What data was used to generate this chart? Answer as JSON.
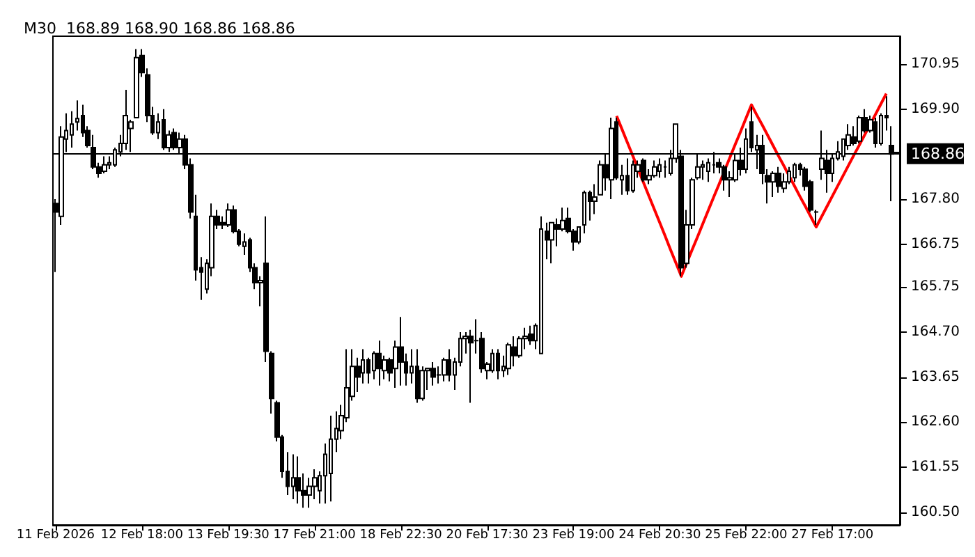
{
  "chart_data": {
    "type": "candlestick",
    "title": "M30  168.89 168.90 168.86 168.86",
    "color": "#000000",
    "categories": [
      "11 Feb 2026",
      null,
      null,
      null,
      null,
      null,
      null,
      null,
      null,
      null,
      null,
      null,
      null,
      null,
      null,
      null,
      "12 Feb 18:00",
      null,
      null,
      null,
      null,
      null,
      null,
      null,
      null,
      null,
      null,
      null,
      null,
      null,
      null,
      null,
      "13 Feb 19:30",
      null,
      null,
      null,
      null,
      null,
      null,
      null,
      null,
      null,
      null,
      null,
      null,
      null,
      null,
      null,
      "17 Feb 21:00",
      null,
      null,
      null,
      null,
      null,
      null,
      null,
      null,
      null,
      null,
      null,
      null,
      null,
      null,
      null,
      "18 Feb 22:30",
      null,
      null,
      null,
      null,
      null,
      null,
      null,
      null,
      null,
      null,
      null,
      null,
      null,
      null,
      null,
      "20 Feb 17:30",
      null,
      null,
      null,
      null,
      null,
      null,
      null,
      null,
      null,
      null,
      null,
      null,
      null,
      null,
      null,
      "23 Feb 19:00",
      null,
      null,
      null,
      null,
      null,
      null,
      null,
      null,
      null,
      null,
      null,
      null,
      null,
      null,
      null,
      "24 Feb 20:30",
      null,
      null,
      null,
      null,
      null,
      null,
      null,
      null,
      null,
      null,
      null,
      null,
      null,
      null,
      null,
      "25 Feb 22:00",
      null,
      null,
      null,
      null,
      null,
      null,
      null,
      null,
      null,
      null,
      null,
      null,
      null,
      null,
      null,
      "27 Feb 17:00",
      null,
      null,
      null,
      null,
      null,
      null,
      null,
      null,
      null,
      null,
      null,
      null
    ],
    "ohlc": [
      [
        167.7,
        167.8,
        166.1,
        167.5
      ],
      [
        167.4,
        169.5,
        167.2,
        169.25
      ],
      [
        169.2,
        169.8,
        168.9,
        169.4
      ],
      [
        169.3,
        169.85,
        169.0,
        169.55
      ],
      [
        169.6,
        170.1,
        169.4,
        169.68
      ],
      [
        169.75,
        170.0,
        169.25,
        169.35
      ],
      [
        169.4,
        169.5,
        169.0,
        169.05
      ],
      [
        169.0,
        169.3,
        168.5,
        168.55
      ],
      [
        168.55,
        168.65,
        168.3,
        168.4
      ],
      [
        168.45,
        168.8,
        168.4,
        168.6
      ],
      [
        168.6,
        168.8,
        168.5,
        168.65
      ],
      [
        168.6,
        169.0,
        168.55,
        168.95
      ],
      [
        168.9,
        169.3,
        168.8,
        169.1
      ],
      [
        169.1,
        170.35,
        168.95,
        169.75
      ],
      [
        169.45,
        169.65,
        168.9,
        169.6
      ],
      [
        169.7,
        171.3,
        169.7,
        171.1
      ],
      [
        171.15,
        171.3,
        170.65,
        170.75
      ],
      [
        170.7,
        170.85,
        169.6,
        169.75
      ],
      [
        169.75,
        169.95,
        169.3,
        169.35
      ],
      [
        169.35,
        169.8,
        169.2,
        169.6
      ],
      [
        169.65,
        169.9,
        168.95,
        169.0
      ],
      [
        169.0,
        169.4,
        168.9,
        169.3
      ],
      [
        169.35,
        169.45,
        168.95,
        169.0
      ],
      [
        169.0,
        169.35,
        168.85,
        169.2
      ],
      [
        169.2,
        169.3,
        168.5,
        168.6
      ],
      [
        168.6,
        168.75,
        167.35,
        167.5
      ],
      [
        167.4,
        167.9,
        165.9,
        166.15
      ],
      [
        166.2,
        166.45,
        165.45,
        166.1
      ],
      [
        165.7,
        166.4,
        165.6,
        166.3
      ],
      [
        166.2,
        167.7,
        166.0,
        167.4
      ],
      [
        167.4,
        167.55,
        167.1,
        167.2
      ],
      [
        167.25,
        167.4,
        167.1,
        167.2
      ],
      [
        167.2,
        167.7,
        167.15,
        167.55
      ],
      [
        167.55,
        167.65,
        167.0,
        167.05
      ],
      [
        167.05,
        167.1,
        166.7,
        166.75
      ],
      [
        166.7,
        167.0,
        166.5,
        166.8
      ],
      [
        166.85,
        166.9,
        166.1,
        166.2
      ],
      [
        166.2,
        166.3,
        165.7,
        165.85
      ],
      [
        165.85,
        166.0,
        165.3,
        165.9
      ],
      [
        166.3,
        167.4,
        164.0,
        164.25
      ],
      [
        164.2,
        164.25,
        162.8,
        163.15
      ],
      [
        163.05,
        163.1,
        162.15,
        162.25
      ],
      [
        162.25,
        162.3,
        161.3,
        161.45
      ],
      [
        161.45,
        161.9,
        160.9,
        161.1
      ],
      [
        161.1,
        161.85,
        160.8,
        161.3
      ],
      [
        161.3,
        161.8,
        160.7,
        161.0
      ],
      [
        161.0,
        161.4,
        160.6,
        160.9
      ],
      [
        160.9,
        161.3,
        160.6,
        161.1
      ],
      [
        161.1,
        161.5,
        160.8,
        161.3
      ],
      [
        161.0,
        161.45,
        160.7,
        161.35
      ],
      [
        161.35,
        162.1,
        160.7,
        161.85
      ],
      [
        161.4,
        162.75,
        160.75,
        162.2
      ],
      [
        162.2,
        162.85,
        161.9,
        162.45
      ],
      [
        162.4,
        163.0,
        162.2,
        162.75
      ],
      [
        162.7,
        164.3,
        162.6,
        163.4
      ],
      [
        163.2,
        164.3,
        163.1,
        163.9
      ],
      [
        163.9,
        164.1,
        163.3,
        163.65
      ],
      [
        163.75,
        164.3,
        163.5,
        164.05
      ],
      [
        164.05,
        164.1,
        163.5,
        163.75
      ],
      [
        163.8,
        164.25,
        163.6,
        164.2
      ],
      [
        164.2,
        164.5,
        163.45,
        163.85
      ],
      [
        163.8,
        164.15,
        163.6,
        164.05
      ],
      [
        164.05,
        164.1,
        163.55,
        163.75
      ],
      [
        163.85,
        164.5,
        163.4,
        164.35
      ],
      [
        164.35,
        165.05,
        163.45,
        164.0
      ],
      [
        164.0,
        164.2,
        163.45,
        163.75
      ],
      [
        163.75,
        164.3,
        163.5,
        163.9
      ],
      [
        163.9,
        164.3,
        163.05,
        163.15
      ],
      [
        163.15,
        163.9,
        163.1,
        163.8
      ],
      [
        163.8,
        163.85,
        163.35,
        163.85
      ],
      [
        163.85,
        164.0,
        163.45,
        163.65
      ],
      [
        163.7,
        163.9,
        163.5,
        163.7
      ],
      [
        163.7,
        164.1,
        163.55,
        164.05
      ],
      [
        164.05,
        164.3,
        163.55,
        163.7
      ],
      [
        163.7,
        164.1,
        163.35,
        164.0
      ],
      [
        164.0,
        164.7,
        163.9,
        164.55
      ],
      [
        164.55,
        164.7,
        164.2,
        164.6
      ],
      [
        164.6,
        164.75,
        163.05,
        164.45
      ],
      [
        164.5,
        165.0,
        164.2,
        164.5
      ],
      [
        164.55,
        164.7,
        163.75,
        163.85
      ],
      [
        163.8,
        164.0,
        163.6,
        163.95
      ],
      [
        163.8,
        164.3,
        163.75,
        164.2
      ],
      [
        164.2,
        164.3,
        163.6,
        163.8
      ],
      [
        163.8,
        164.15,
        163.65,
        163.9
      ],
      [
        163.85,
        164.45,
        163.7,
        164.4
      ],
      [
        164.35,
        164.6,
        163.9,
        164.15
      ],
      [
        164.15,
        164.6,
        164.1,
        164.55
      ],
      [
        164.55,
        164.8,
        164.3,
        164.6
      ],
      [
        164.65,
        164.85,
        164.4,
        164.5
      ],
      [
        164.5,
        164.9,
        164.3,
        164.85
      ],
      [
        164.2,
        167.4,
        164.2,
        167.1
      ],
      [
        167.05,
        167.25,
        166.4,
        166.85
      ],
      [
        166.85,
        167.25,
        166.3,
        167.25
      ],
      [
        167.2,
        167.35,
        166.7,
        167.1
      ],
      [
        167.1,
        167.6,
        167.05,
        167.3
      ],
      [
        167.35,
        167.6,
        167.0,
        167.05
      ],
      [
        167.05,
        167.1,
        166.6,
        166.8
      ],
      [
        166.8,
        167.15,
        166.75,
        167.15
      ],
      [
        167.2,
        168.0,
        167.0,
        167.95
      ],
      [
        167.95,
        168.0,
        167.3,
        167.75
      ],
      [
        167.75,
        168.15,
        167.45,
        167.85
      ],
      [
        167.9,
        168.7,
        167.9,
        168.6
      ],
      [
        168.6,
        168.85,
        168.0,
        168.3
      ],
      [
        168.25,
        169.7,
        167.8,
        169.45
      ],
      [
        169.6,
        169.7,
        168.25,
        168.3
      ],
      [
        168.25,
        168.6,
        167.9,
        168.35
      ],
      [
        168.35,
        168.75,
        167.9,
        168.0
      ],
      [
        168.0,
        168.7,
        167.95,
        168.6
      ],
      [
        168.45,
        168.7,
        168.3,
        168.6
      ],
      [
        168.7,
        168.75,
        168.2,
        168.25
      ],
      [
        168.25,
        168.5,
        168.15,
        168.35
      ],
      [
        168.35,
        168.7,
        168.3,
        168.55
      ],
      [
        168.45,
        168.75,
        168.3,
        168.6
      ],
      [
        168.55,
        168.7,
        168.3,
        168.55
      ],
      [
        168.4,
        168.95,
        168.35,
        168.75
      ],
      [
        168.75,
        169.55,
        168.65,
        169.55
      ],
      [
        168.8,
        168.95,
        166.0,
        166.2
      ],
      [
        166.3,
        167.55,
        166.2,
        167.2
      ],
      [
        167.2,
        168.3,
        167.1,
        168.25
      ],
      [
        168.3,
        168.85,
        168.25,
        168.55
      ],
      [
        168.55,
        168.7,
        168.25,
        168.6
      ],
      [
        168.45,
        168.75,
        168.2,
        168.65
      ],
      [
        168.6,
        168.9,
        168.4,
        168.6
      ],
      [
        168.65,
        168.75,
        168.4,
        168.55
      ],
      [
        168.55,
        168.6,
        168.0,
        168.25
      ],
      [
        168.25,
        168.45,
        167.85,
        168.3
      ],
      [
        168.25,
        168.85,
        168.2,
        168.7
      ],
      [
        168.7,
        169.0,
        168.35,
        168.5
      ],
      [
        168.5,
        169.45,
        168.4,
        169.2
      ],
      [
        169.6,
        169.95,
        168.9,
        169.0
      ],
      [
        168.95,
        169.3,
        168.5,
        169.05
      ],
      [
        169.05,
        169.3,
        168.15,
        168.4
      ],
      [
        168.35,
        168.5,
        167.7,
        168.2
      ],
      [
        168.2,
        168.45,
        167.85,
        168.4
      ],
      [
        168.4,
        168.55,
        167.95,
        168.1
      ],
      [
        168.05,
        168.4,
        167.95,
        168.2
      ],
      [
        168.2,
        168.55,
        168.15,
        168.45
      ],
      [
        168.3,
        168.65,
        168.2,
        168.6
      ],
      [
        168.6,
        168.65,
        168.35,
        168.5
      ],
      [
        168.5,
        168.55,
        168.0,
        168.1
      ],
      [
        168.2,
        168.25,
        167.5,
        167.55
      ],
      [
        167.5,
        167.55,
        167.2,
        167.5
      ],
      [
        168.5,
        169.4,
        168.25,
        168.75
      ],
      [
        168.7,
        168.95,
        167.95,
        168.4
      ],
      [
        168.4,
        168.85,
        168.2,
        168.75
      ],
      [
        168.75,
        169.15,
        168.7,
        168.9
      ],
      [
        168.8,
        169.2,
        168.7,
        169.2
      ],
      [
        169.05,
        169.55,
        168.95,
        169.3
      ],
      [
        169.25,
        169.5,
        169.05,
        169.1
      ],
      [
        169.15,
        169.75,
        169.1,
        169.7
      ],
      [
        169.7,
        169.9,
        169.35,
        169.4
      ],
      [
        169.4,
        169.75,
        169.35,
        169.65
      ],
      [
        169.6,
        169.7,
        169.0,
        169.1
      ],
      [
        169.1,
        169.8,
        169.05,
        169.75
      ],
      [
        169.75,
        170.2,
        169.4,
        169.7
      ],
      [
        169.05,
        169.5,
        167.75,
        168.85
      ],
      [
        168.89,
        168.9,
        168.86,
        168.86
      ]
    ],
    "series": [
      {
        "type": "line",
        "color": "#ff0000",
        "values": [
          null,
          null,
          null,
          null,
          null,
          null,
          null,
          null,
          null,
          null,
          null,
          null,
          null,
          null,
          null,
          null,
          null,
          null,
          null,
          null,
          null,
          null,
          null,
          null,
          null,
          null,
          null,
          null,
          null,
          null,
          null,
          null,
          null,
          null,
          null,
          null,
          null,
          null,
          null,
          null,
          null,
          null,
          null,
          null,
          null,
          null,
          null,
          null,
          null,
          null,
          null,
          null,
          null,
          null,
          null,
          null,
          null,
          null,
          null,
          null,
          null,
          null,
          null,
          null,
          null,
          null,
          null,
          null,
          null,
          null,
          null,
          null,
          null,
          null,
          null,
          null,
          null,
          null,
          null,
          null,
          null,
          null,
          null,
          null,
          null,
          null,
          null,
          null,
          null,
          null,
          null,
          null,
          null,
          null,
          null,
          null,
          null,
          null,
          null,
          null,
          null,
          null,
          null,
          null,
          169.74,
          169.43,
          169.12,
          168.81,
          168.49,
          168.18,
          167.87,
          167.56,
          167.25,
          166.94,
          166.62,
          166.31,
          166.0,
          166.31,
          166.62,
          166.92,
          167.23,
          167.54,
          167.85,
          168.15,
          168.46,
          168.77,
          169.08,
          169.38,
          169.69,
          170.0,
          169.76,
          169.53,
          169.29,
          169.05,
          168.81,
          168.58,
          168.34,
          168.1,
          167.86,
          167.63,
          167.39,
          167.15,
          167.39,
          167.63,
          167.87,
          168.11,
          168.35,
          168.59,
          168.83,
          169.06,
          169.3,
          169.54,
          169.78,
          170.02,
          170.26,
          null,
          null
        ]
      }
    ],
    "ylim": [
      160.2,
      171.6
    ],
    "yticks": [
      {
        "value": 160.5,
        "label": "160.50"
      },
      161.55,
      {
        "value": 162.6,
        "label": "162.60"
      },
      163.65,
      {
        "value": 164.7,
        "label": "164.70"
      },
      165.75,
      166.75,
      {
        "value": 167.8,
        "label": "167.80"
      },
      {
        "value": 169.9,
        "label": "169.90"
      },
      170.95
    ],
    "ref_lines": [
      {
        "axis": "y",
        "value": 168.86,
        "label": "168.86",
        "color": "#000000"
      }
    ],
    "grid": false,
    "marker": "none",
    "line_style": "solid"
  }
}
